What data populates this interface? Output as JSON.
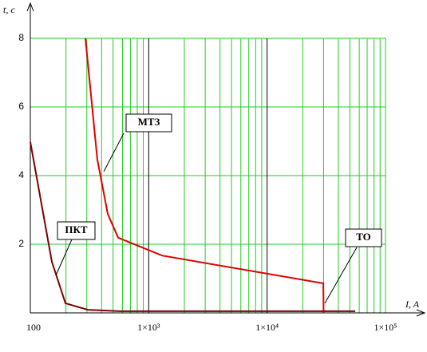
{
  "chart_data": {
    "type": "line",
    "y_label": "t, c",
    "x_label": "I, A",
    "log_x": true,
    "grid": true,
    "minor_grid": true,
    "xlim": [
      100,
      100000
    ],
    "xticks": [
      100,
      {
        "value": 1000,
        "label": "1×10³"
      },
      {
        "value": 10000,
        "label": "1×10⁴"
      },
      {
        "value": 100000,
        "label": "1×10⁵"
      }
    ],
    "ylim": [
      0,
      8
    ],
    "yticks": [
      2,
      4,
      6,
      8
    ],
    "series": [
      {
        "name": "МТЗ",
        "color": "#e00000",
        "x": [
          292,
          368,
          451,
          552,
          1297,
          29850,
          30000
        ],
        "values": [
          8,
          4.47,
          2.88,
          2.19,
          1.67,
          0.86,
          0
        ]
      },
      {
        "name": "ПКТ",
        "color": "#800000",
        "x": [
          100,
          152,
          198,
          306,
          569,
          55500
        ],
        "values": [
          4.98,
          1.49,
          0.28,
          0.09,
          0.05,
          0.05
        ]
      }
    ],
    "annotations": [
      "ТО"
    ]
  }
}
